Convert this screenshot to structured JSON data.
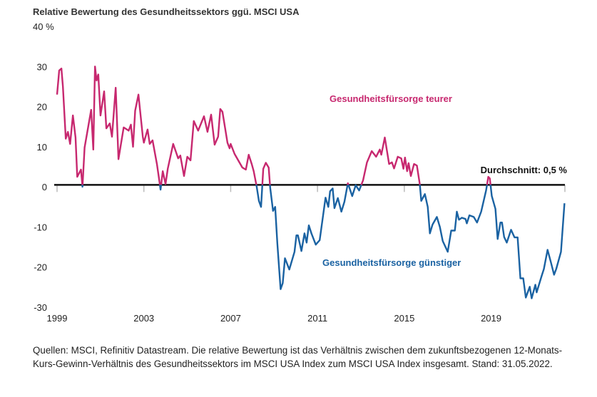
{
  "chart_data": {
    "type": "line",
    "title": "Relative Bewertung des Gesundheitssektors ggü. MSCI USA",
    "ylabel_top": "40 %",
    "ylim": [
      -30,
      40
    ],
    "yticks": [
      30,
      20,
      10,
      0,
      -10,
      -20,
      -30
    ],
    "ytick_labels": [
      "30",
      "20",
      "10",
      "0",
      "-10",
      "-20",
      "-30"
    ],
    "xlim": [
      1999,
      2022.4
    ],
    "xticks": [
      1999,
      2003,
      2007,
      2011,
      2015,
      2019,
      2022.4
    ],
    "xtick_labels": [
      "1999",
      "2003",
      "2007",
      "2011",
      "2015",
      "2019"
    ],
    "average": {
      "value": 0.5,
      "label": "Durchschnitt: 0,5 %"
    },
    "colors": {
      "above": "#c7286f",
      "below": "#1a62a2",
      "average": "#111111"
    },
    "annotations": {
      "above": "Gesundheitsfürsorge teurer",
      "below": "Gesundheitsfürsorge günstiger"
    },
    "grid": false,
    "series": [
      [
        1999.0,
        23
      ],
      [
        1999.1,
        29
      ],
      [
        1999.2,
        29.5
      ],
      [
        1999.27,
        25
      ],
      [
        1999.4,
        12
      ],
      [
        1999.5,
        13.7
      ],
      [
        1999.6,
        10.7
      ],
      [
        1999.73,
        17.8
      ],
      [
        1999.85,
        12.3
      ],
      [
        1999.93,
        2.5
      ],
      [
        2000.1,
        4.3
      ],
      [
        2000.17,
        0
      ],
      [
        2000.27,
        9.8
      ],
      [
        2000.57,
        19.2
      ],
      [
        2000.67,
        9.3
      ],
      [
        2000.75,
        30
      ],
      [
        2000.82,
        26.5
      ],
      [
        2000.9,
        28
      ],
      [
        2001.0,
        17.8
      ],
      [
        2001.17,
        23.8
      ],
      [
        2001.27,
        14.6
      ],
      [
        2001.43,
        15.8
      ],
      [
        2001.53,
        12.5
      ],
      [
        2001.7,
        24.7
      ],
      [
        2001.83,
        6.9
      ],
      [
        2002.07,
        14.8
      ],
      [
        2002.3,
        14
      ],
      [
        2002.4,
        15.5
      ],
      [
        2002.5,
        10
      ],
      [
        2002.6,
        19
      ],
      [
        2002.75,
        23
      ],
      [
        2002.95,
        12.5
      ],
      [
        2003.0,
        11
      ],
      [
        2003.17,
        14.3
      ],
      [
        2003.27,
        10.7
      ],
      [
        2003.4,
        11.6
      ],
      [
        2003.6,
        5.7
      ],
      [
        2003.77,
        -0.7
      ],
      [
        2003.87,
        3.9
      ],
      [
        2004.0,
        0.7
      ],
      [
        2004.1,
        4.5
      ],
      [
        2004.35,
        10.7
      ],
      [
        2004.58,
        7.1
      ],
      [
        2004.68,
        7.8
      ],
      [
        2004.85,
        2.7
      ],
      [
        2005.0,
        7.5
      ],
      [
        2005.15,
        6.6
      ],
      [
        2005.3,
        16.4
      ],
      [
        2005.5,
        14
      ],
      [
        2005.77,
        17.6
      ],
      [
        2005.93,
        13.7
      ],
      [
        2006.1,
        18
      ],
      [
        2006.26,
        10.5
      ],
      [
        2006.42,
        12.5
      ],
      [
        2006.52,
        19.4
      ],
      [
        2006.62,
        18.7
      ],
      [
        2006.85,
        11
      ],
      [
        2006.95,
        9.6
      ],
      [
        2007.0,
        10.7
      ],
      [
        2007.18,
        8.2
      ],
      [
        2007.54,
        4.8
      ],
      [
        2007.7,
        4.3
      ],
      [
        2007.83,
        8
      ],
      [
        2007.97,
        5.7
      ],
      [
        2008.06,
        3.9
      ],
      [
        2008.2,
        0
      ],
      [
        2008.3,
        -3.5
      ],
      [
        2008.4,
        -5
      ],
      [
        2008.5,
        4.5
      ],
      [
        2008.62,
        6
      ],
      [
        2008.75,
        4.8
      ],
      [
        2008.82,
        -0.2
      ],
      [
        2008.95,
        -6
      ],
      [
        2009.05,
        -5
      ],
      [
        2009.15,
        -14
      ],
      [
        2009.3,
        -25.5
      ],
      [
        2009.4,
        -24
      ],
      [
        2009.5,
        -17.8
      ],
      [
        2009.7,
        -20.6
      ],
      [
        2009.94,
        -16.2
      ],
      [
        2010.03,
        -12.1
      ],
      [
        2010.1,
        -12.1
      ],
      [
        2010.26,
        -16
      ],
      [
        2010.4,
        -11.6
      ],
      [
        2010.5,
        -13.9
      ],
      [
        2010.6,
        -9.6
      ],
      [
        2010.72,
        -11.6
      ],
      [
        2010.92,
        -14.4
      ],
      [
        2011.1,
        -13.3
      ],
      [
        2011.37,
        -2.7
      ],
      [
        2011.5,
        -5
      ],
      [
        2011.58,
        -1.1
      ],
      [
        2011.7,
        -0.4
      ],
      [
        2011.78,
        -5.3
      ],
      [
        2011.94,
        -2.8
      ],
      [
        2012.1,
        -6.2
      ],
      [
        2012.24,
        -3.7
      ],
      [
        2012.4,
        0.9
      ],
      [
        2012.6,
        -2.3
      ],
      [
        2012.76,
        0.4
      ],
      [
        2012.92,
        -0.9
      ],
      [
        2013.1,
        1.6
      ],
      [
        2013.28,
        6.1
      ],
      [
        2013.5,
        8.9
      ],
      [
        2013.7,
        7.5
      ],
      [
        2013.87,
        9.3
      ],
      [
        2013.94,
        8
      ],
      [
        2014.1,
        12.3
      ],
      [
        2014.3,
        5.7
      ],
      [
        2014.43,
        6.1
      ],
      [
        2014.53,
        4.6
      ],
      [
        2014.7,
        7.5
      ],
      [
        2014.86,
        7.1
      ],
      [
        2014.96,
        4.5
      ],
      [
        2015.03,
        7.3
      ],
      [
        2015.13,
        3.9
      ],
      [
        2015.2,
        5.9
      ],
      [
        2015.3,
        2.7
      ],
      [
        2015.45,
        5.7
      ],
      [
        2015.58,
        5.3
      ],
      [
        2015.72,
        0.4
      ],
      [
        2015.78,
        -3.5
      ],
      [
        2015.95,
        -1.8
      ],
      [
        2016.08,
        -5
      ],
      [
        2016.18,
        -11.6
      ],
      [
        2016.3,
        -9.4
      ],
      [
        2016.5,
        -7.5
      ],
      [
        2016.64,
        -10
      ],
      [
        2016.77,
        -13.5
      ],
      [
        2017.0,
        -16.2
      ],
      [
        2017.16,
        -10.9
      ],
      [
        2017.33,
        -10.9
      ],
      [
        2017.42,
        -6.2
      ],
      [
        2017.52,
        -8.2
      ],
      [
        2017.65,
        -7.7
      ],
      [
        2017.82,
        -8
      ],
      [
        2017.88,
        -9.1
      ],
      [
        2018.0,
        -7.1
      ],
      [
        2018.2,
        -7.5
      ],
      [
        2018.35,
        -8.9
      ],
      [
        2018.54,
        -6.2
      ],
      [
        2018.77,
        -0.9
      ],
      [
        2018.87,
        2.5
      ],
      [
        2018.94,
        2.1
      ],
      [
        2019.03,
        -2.3
      ],
      [
        2019.2,
        -5.5
      ],
      [
        2019.3,
        -13
      ],
      [
        2019.43,
        -8.9
      ],
      [
        2019.5,
        -8.9
      ],
      [
        2019.6,
        -12.5
      ],
      [
        2019.72,
        -13.9
      ],
      [
        2019.92,
        -10.7
      ],
      [
        2020.08,
        -12.6
      ],
      [
        2020.22,
        -12.6
      ],
      [
        2020.35,
        -22.8
      ],
      [
        2020.48,
        -22.8
      ],
      [
        2020.6,
        -27.6
      ],
      [
        2020.78,
        -24.9
      ],
      [
        2020.87,
        -27.8
      ],
      [
        2021.04,
        -24.4
      ],
      [
        2021.1,
        -26.3
      ],
      [
        2021.33,
        -22.2
      ],
      [
        2021.43,
        -20.5
      ],
      [
        2021.6,
        -15.7
      ],
      [
        2021.76,
        -18.9
      ],
      [
        2021.9,
        -21.9
      ],
      [
        2022.0,
        -20.5
      ],
      [
        2022.22,
        -16.2
      ],
      [
        2022.38,
        -4.1
      ]
    ]
  },
  "source": "Quellen: MSCI, Refinitiv Datastream. Die relative Bewertung ist das Verhältnis zwischen dem zukunftsbezogenen 12-Monats-Kurs-Gewinn-Verhältnis des Gesundheitssektors im MSCI USA Index zum MSCI USA Index insgesamt. Stand: 31.05.2022."
}
